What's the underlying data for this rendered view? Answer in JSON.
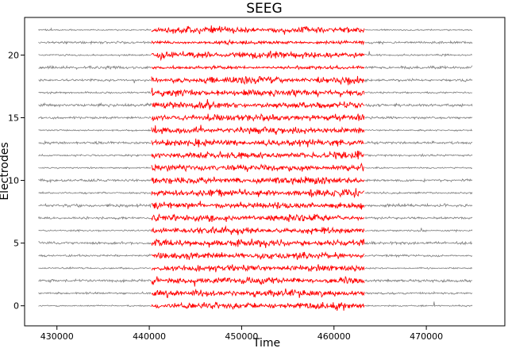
{
  "chart_data": {
    "type": "line",
    "title": "SEEG",
    "xlabel": "Time",
    "ylabel": "Electrodes",
    "xlim": [
      426500,
      478500
    ],
    "ylim": [
      -1.6,
      23.0
    ],
    "x_ticks": [
      430000,
      440000,
      450000,
      460000,
      470000
    ],
    "x_tick_labels": [
      "430000",
      "440000",
      "450000",
      "460000",
      "470000"
    ],
    "y_ticks": [
      0,
      5,
      10,
      15,
      20
    ],
    "y_tick_labels": [
      "0",
      "5",
      "10",
      "15",
      "20"
    ],
    "x_range": [
      428000,
      475000
    ],
    "num_channels": 23,
    "channel_offsets": [
      0,
      1,
      2,
      3,
      4,
      5,
      6,
      7,
      8,
      9,
      10,
      11,
      12,
      13,
      14,
      15,
      16,
      17,
      18,
      19,
      20,
      21,
      22
    ],
    "highlight_range": [
      440200,
      463300
    ],
    "colors": {
      "baseline": "#808080",
      "highlight": "#ff0000",
      "axes": "#000000"
    },
    "grid": false,
    "legend": "none"
  }
}
